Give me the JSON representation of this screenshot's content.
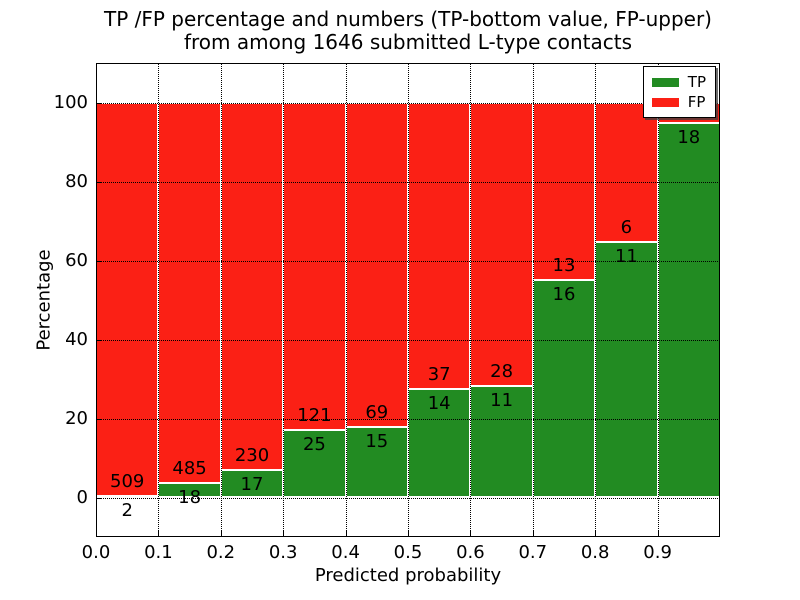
{
  "title": {
    "line1": "TP /FP percentage and numbers (TP-bottom value, FP-upper)",
    "line2": "from among 1646 submitted L-type contacts"
  },
  "axes": {
    "xlabel": "Predicted probability",
    "ylabel": "Percentage",
    "x_tick_labels": [
      "0.0",
      "0.1",
      "0.2",
      "0.3",
      "0.4",
      "0.5",
      "0.6",
      "0.7",
      "0.8",
      "0.9"
    ],
    "x_tick_values": [
      0,
      0.1,
      0.2,
      0.3,
      0.4,
      0.5,
      0.6,
      0.7,
      0.8,
      0.9
    ],
    "y_tick_labels": [
      "0",
      "20",
      "40",
      "60",
      "80",
      "100"
    ],
    "y_tick_values": [
      0,
      20,
      40,
      60,
      80,
      100
    ],
    "xlim": [
      0,
      1.0
    ],
    "ylim": [
      -10,
      110
    ],
    "grid_style": "dotted"
  },
  "legend": {
    "position": "upper-right",
    "items": [
      {
        "label": "TP",
        "color": "#228b22"
      },
      {
        "label": "FP",
        "color": "#fb2015"
      }
    ]
  },
  "chart_data": {
    "type": "bar",
    "stacked": true,
    "normalized_to": 100,
    "title": "TP /FP percentage and numbers (TP-bottom value, FP-upper) from among 1646 submitted L-type contacts",
    "xlabel": "Predicted probability",
    "ylabel": "Percentage",
    "total_contacts": 1646,
    "bin_width": 0.1,
    "bin_starts": [
      0.0,
      0.1,
      0.2,
      0.3,
      0.4,
      0.5,
      0.6,
      0.7,
      0.8,
      0.9
    ],
    "categories": [
      "0.0-0.1",
      "0.1-0.2",
      "0.2-0.3",
      "0.3-0.4",
      "0.4-0.5",
      "0.5-0.6",
      "0.6-0.7",
      "0.7-0.8",
      "0.8-0.9",
      "0.9-1.0"
    ],
    "series": [
      {
        "name": "TP",
        "color": "#228b22",
        "counts": [
          2,
          18,
          17,
          25,
          15,
          14,
          11,
          16,
          11,
          18
        ],
        "pct": [
          0.39,
          3.58,
          6.88,
          17.12,
          17.86,
          27.45,
          28.21,
          55.17,
          64.71,
          94.74
        ]
      },
      {
        "name": "FP",
        "color": "#fb2015",
        "counts": [
          509,
          485,
          230,
          121,
          69,
          37,
          28,
          13,
          6,
          null
        ],
        "pct": [
          99.61,
          96.42,
          93.12,
          82.88,
          82.14,
          72.55,
          71.79,
          44.83,
          35.29,
          5.26
        ]
      }
    ]
  }
}
